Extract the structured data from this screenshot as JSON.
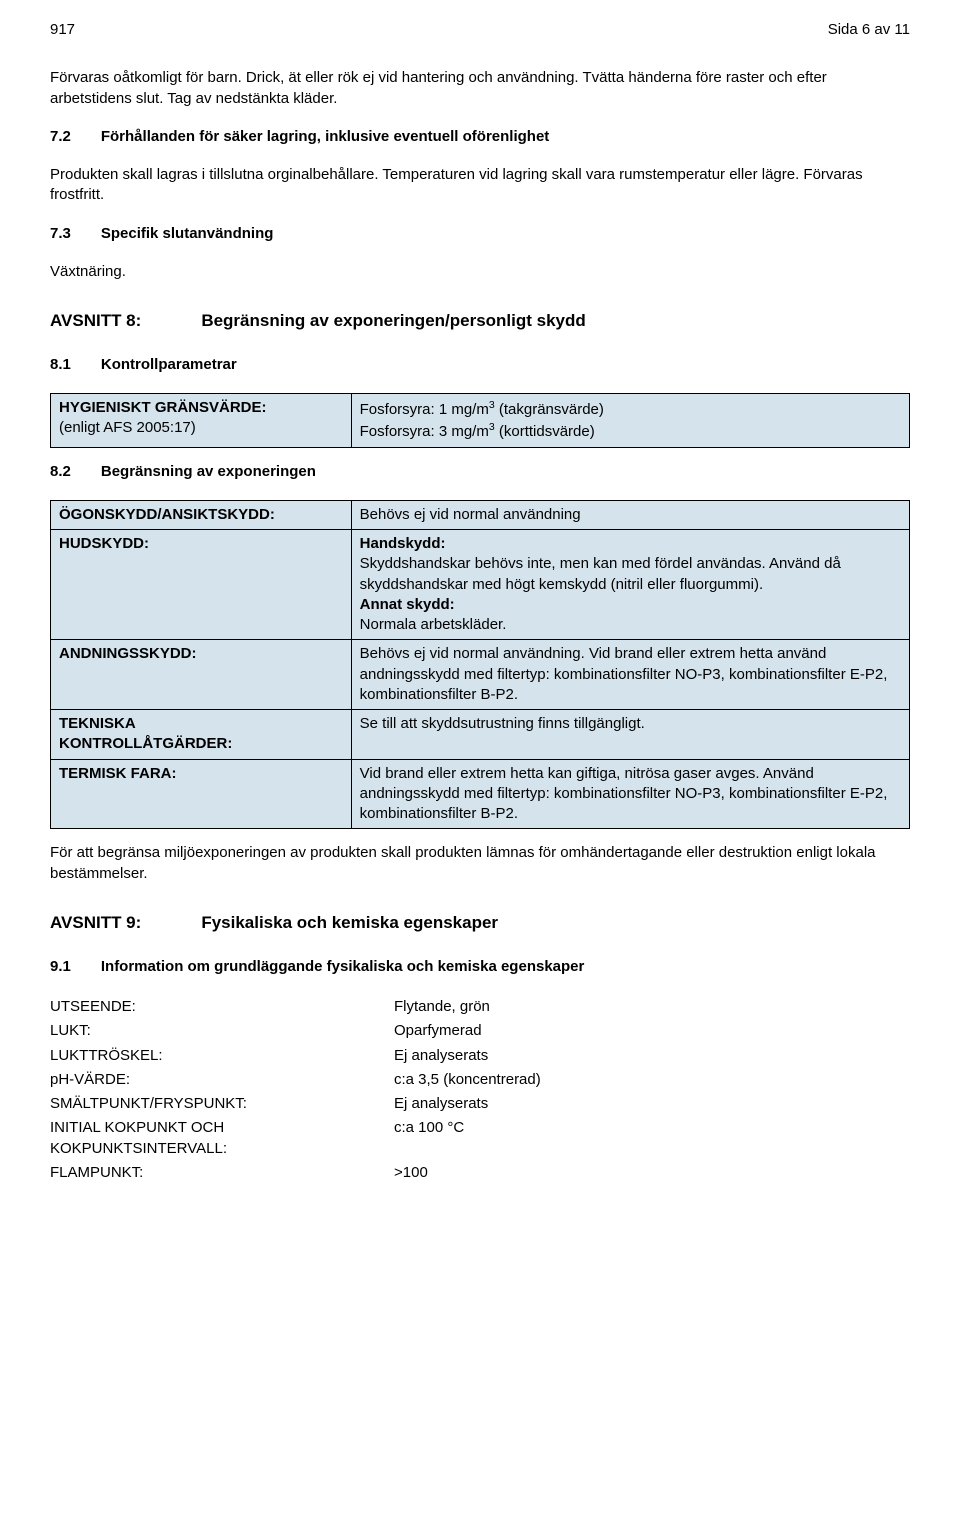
{
  "header": {
    "doc_id": "917",
    "page_info": "Sida 6 av 11"
  },
  "intro": {
    "p1": "Förvaras oåtkomligt för barn. Drick, ät eller rök ej vid hantering och användning. Tvätta händerna före raster och efter arbetstidens slut. Tag av nedstänkta kläder."
  },
  "s72": {
    "num": "7.2",
    "title": "Förhållanden för säker lagring, inklusive eventuell oförenlighet",
    "body": "Produkten skall lagras i tillslutna orginalbehållare. Temperaturen vid lagring skall vara rumstemperatur eller lägre. Förvaras frostfritt."
  },
  "s73": {
    "num": "7.3",
    "title": "Specifik slutanvändning",
    "body": "Växtnäring."
  },
  "s8": {
    "num": "AVSNITT 8:",
    "title": "Begränsning av exponeringen/personligt skydd"
  },
  "s81": {
    "num": "8.1",
    "title": "Kontrollparametrar",
    "row_label_1": "HYGIENISKT GRÄNSVÄRDE:",
    "row_label_2": "(enligt AFS 2005:17)",
    "row_val_1a": "Fosforsyra: 1 mg/m",
    "row_val_1b": " (takgränsvärde)",
    "row_val_2a": "Fosforsyra: 3 mg/m",
    "row_val_2b": " (korttidsvärde)",
    "sup": "3"
  },
  "s82": {
    "num": "8.2",
    "title": "Begränsning av exponeringen",
    "rows": {
      "face_label": "ÖGONSKYDD/ANSIKTSKYDD:",
      "face_val": "Behövs ej vid normal användning",
      "skin_label": "HUDSKYDD:",
      "skin_h1": "Handskydd:",
      "skin_p1": "Skyddshandskar behövs inte, men kan med fördel användas. Använd då skyddshandskar med högt kemskydd (nitril eller fluorgummi).",
      "skin_h2": "Annat skydd:",
      "skin_p2": "Normala arbetskläder.",
      "resp_label": "ANDNINGSSKYDD:",
      "resp_val": "Behövs ej vid normal användning. Vid brand eller extrem hetta använd andningsskydd med filtertyp: kombinationsfilter NO-P3, kombinationsfilter E-P2, kombinationsfilter B-P2.",
      "tech_label_1": "TEKNISKA",
      "tech_label_2": "KONTROLLÅTGÄRDER:",
      "tech_val": "Se till att skyddsutrustning finns tillgängligt.",
      "therm_label": "TERMISK FARA:",
      "therm_val": "Vid brand eller extrem hetta kan giftiga, nitrösa gaser avges. Använd andningsskydd med filtertyp: kombinationsfilter NO-P3, kombinationsfilter E-P2, kombinationsfilter B-P2."
    },
    "footer": "För att begränsa miljöexponeringen av produkten skall produkten lämnas för omhändertagande eller destruktion enligt lokala bestämmelser."
  },
  "s9": {
    "num": "AVSNITT 9:",
    "title": "Fysikaliska och kemiska egenskaper"
  },
  "s91": {
    "num": "9.1",
    "title": "Information om grundläggande fysikaliska och kemiska egenskaper",
    "rows": [
      {
        "l": "UTSEENDE:",
        "v": "Flytande, grön"
      },
      {
        "l": "LUKT:",
        "v": "Oparfymerad"
      },
      {
        "l": "LUKTTRÖSKEL:",
        "v": "Ej analyserats"
      },
      {
        "l": "pH-VÄRDE:",
        "v": "c:a 3,5 (koncentrerad)"
      },
      {
        "l": "SMÄLTPUNKT/FRYSPUNKT:",
        "v": "Ej analyserats"
      },
      {
        "l": "INITIAL KOKPUNKT OCH KOKPUNKTSINTERVALL:",
        "v": "c:a 100 °C"
      },
      {
        "l": "FLAMPUNKT:",
        "v": ">100"
      }
    ]
  },
  "colors": {
    "table_bg": "#d5e3ed",
    "border": "#000000",
    "text": "#000000"
  }
}
